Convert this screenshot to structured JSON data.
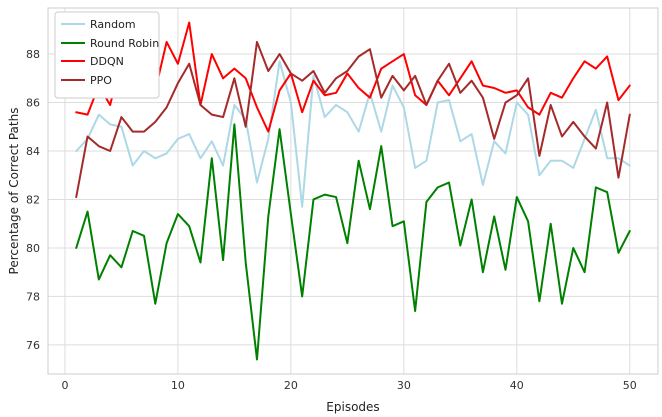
{
  "chart_data": {
    "type": "line",
    "xlabel": "Episodes",
    "ylabel": "Percentage of Correct Paths",
    "xlim": [
      -1.5,
      52.5
    ],
    "ylim": [
      74.8,
      89.9
    ],
    "xticks": [
      0,
      10,
      20,
      30,
      40,
      50
    ],
    "yticks": [
      76,
      78,
      80,
      82,
      84,
      86,
      88
    ],
    "grid": true,
    "legend_position": "top-left",
    "x": [
      1,
      2,
      3,
      4,
      5,
      6,
      7,
      8,
      9,
      10,
      11,
      12,
      13,
      14,
      15,
      16,
      17,
      18,
      19,
      20,
      21,
      22,
      23,
      24,
      25,
      26,
      27,
      28,
      29,
      30,
      31,
      32,
      33,
      34,
      35,
      36,
      37,
      38,
      39,
      40,
      41,
      42,
      43,
      44,
      45,
      46,
      47,
      48,
      49,
      50
    ],
    "series": [
      {
        "name": "Random",
        "color": "#add8e6",
        "width": 2,
        "values": [
          84.0,
          84.5,
          85.5,
          85.1,
          85.0,
          83.4,
          84.0,
          83.7,
          83.9,
          84.5,
          84.7,
          83.7,
          84.4,
          83.4,
          85.9,
          85.3,
          82.7,
          84.5,
          87.7,
          86.0,
          81.7,
          87.1,
          85.4,
          85.9,
          85.6,
          84.8,
          86.4,
          84.8,
          86.7,
          85.8,
          83.3,
          83.6,
          86.0,
          86.1,
          84.4,
          84.7,
          82.6,
          84.4,
          83.9,
          86.0,
          85.5,
          83.0,
          83.6,
          83.6,
          83.3,
          84.5,
          85.7,
          83.7,
          83.7,
          83.4
        ]
      },
      {
        "name": "Round Robin",
        "color": "#008000",
        "width": 2,
        "values": [
          80.0,
          81.5,
          78.7,
          79.7,
          79.2,
          80.7,
          80.5,
          77.7,
          80.2,
          81.4,
          80.9,
          79.4,
          83.7,
          79.5,
          85.1,
          79.4,
          75.4,
          81.3,
          84.9,
          81.4,
          78.0,
          82.0,
          82.2,
          82.1,
          80.2,
          83.6,
          81.6,
          84.2,
          80.9,
          81.1,
          77.4,
          81.9,
          82.5,
          82.7,
          80.1,
          82.0,
          79.0,
          81.3,
          79.1,
          82.1,
          81.1,
          77.8,
          81.0,
          77.7,
          80.0,
          79.0,
          82.5,
          82.3,
          79.8,
          80.7
        ]
      },
      {
        "name": "DDQN",
        "color": "#ff0000",
        "width": 2,
        "values": [
          85.6,
          85.5,
          86.7,
          85.9,
          87.8,
          86.5,
          88.0,
          86.5,
          88.5,
          87.6,
          89.3,
          85.9,
          88.0,
          87.0,
          87.4,
          87.0,
          85.8,
          84.8,
          86.5,
          87.2,
          85.6,
          86.9,
          86.3,
          86.4,
          87.2,
          86.6,
          86.2,
          87.4,
          87.7,
          88.0,
          86.3,
          85.9,
          86.9,
          86.3,
          87.0,
          87.7,
          86.7,
          86.6,
          86.4,
          86.5,
          85.8,
          85.5,
          86.4,
          86.2,
          87.0,
          87.7,
          87.4,
          87.9,
          86.1,
          86.7
        ]
      },
      {
        "name": "PPO",
        "color": "#a52a2a",
        "width": 2,
        "values": [
          82.1,
          84.6,
          84.2,
          84.0,
          85.4,
          84.8,
          84.8,
          85.2,
          85.8,
          86.8,
          87.6,
          85.9,
          85.5,
          85.4,
          87.0,
          85.0,
          88.5,
          87.3,
          88.0,
          87.2,
          86.9,
          87.3,
          86.4,
          87.0,
          87.3,
          87.9,
          88.2,
          86.2,
          87.1,
          86.5,
          87.1,
          85.9,
          86.9,
          87.6,
          86.4,
          86.9,
          86.2,
          84.5,
          86.0,
          86.3,
          87.0,
          83.8,
          85.9,
          84.6,
          85.2,
          84.6,
          84.1,
          86.0,
          82.9,
          85.5
        ]
      }
    ]
  }
}
